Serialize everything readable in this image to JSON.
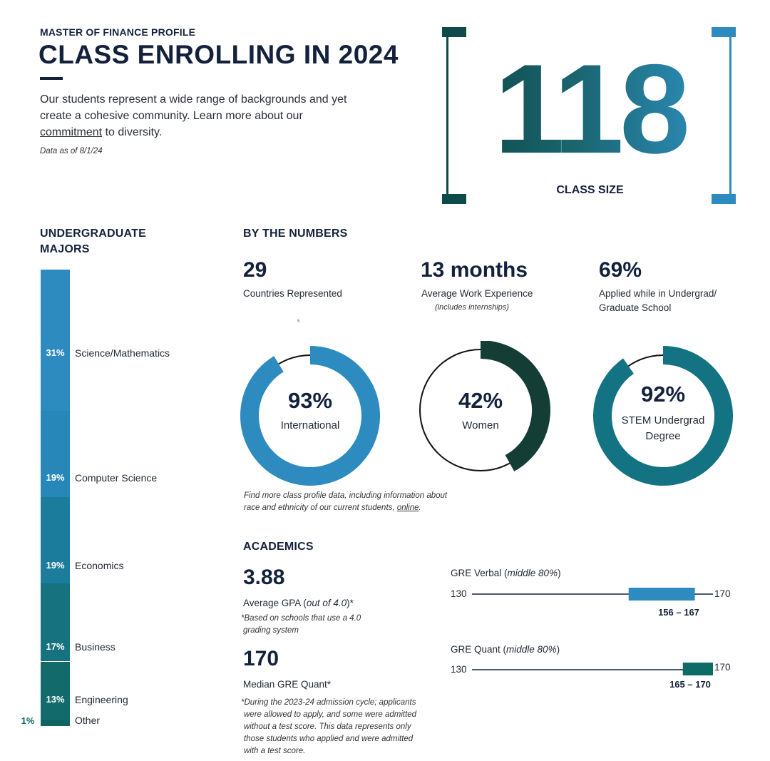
{
  "header": {
    "eyebrow": "MASTER OF FINANCE PROFILE",
    "title": "CLASS ENROLLING IN 2024",
    "intro_before": "Our students represent a wide range of backgrounds and yet create a cohesive community. Learn more about our ",
    "intro_link": "commitment",
    "intro_after": " to diversity.",
    "data_as_of": "Data as of 8/1/24"
  },
  "class_size": {
    "number": "118",
    "label": "CLASS SIZE"
  },
  "majors": {
    "heading_line1": "UNDERGRADUATE",
    "heading_line2": "MAJORS",
    "items": [
      {
        "pct": "31%",
        "label": "Science/Mathematics",
        "value": 31,
        "color": "#2e8bc0"
      },
      {
        "pct": "19%",
        "label": "Computer Science",
        "value": 19,
        "color": "#2687b8"
      },
      {
        "pct": "19%",
        "label": "Economics",
        "value": 19,
        "color": "#1c7c9c"
      },
      {
        "pct": "17%",
        "label": "Business",
        "value": 17,
        "color": "#17727f"
      },
      {
        "pct": "13%",
        "label": "Engineering",
        "value": 13,
        "color": "#126a6a"
      },
      {
        "pct": "1%",
        "label": "Other",
        "value": 1,
        "color": "#0f6361"
      }
    ]
  },
  "numbers": {
    "heading": "BY THE NUMBERS",
    "countries": {
      "value": "29",
      "label": "Countries Represented"
    },
    "work": {
      "value": "13 months",
      "label": "Average Work Experience",
      "note": "(includes internships)"
    },
    "applied": {
      "value": "69%",
      "label_line1": "Applied while in Undergrad/",
      "label_line2": "Graduate School"
    },
    "tiny_mark": "5",
    "donuts": [
      {
        "value": "93%",
        "label_line1": "International",
        "label_line2": "",
        "percent": 93,
        "color": "#2e8bc0"
      },
      {
        "value": "42%",
        "label_line1": "Women",
        "label_line2": "",
        "percent": 42,
        "color": "#143d36"
      },
      {
        "value": "92%",
        "label_line1": "STEM Undergrad",
        "label_line2": "Degree",
        "percent": 92,
        "color": "#137383"
      }
    ],
    "more_note_line1": "Find more class profile data, including information about",
    "more_note_line2_before": "race and ethnicity of our current students, ",
    "more_note_link": "online",
    "more_note_after": "."
  },
  "academics": {
    "heading": "ACADEMICS",
    "gpa": {
      "value": "3.88",
      "label_before": "Average GPA (",
      "label_italic": "out of 4.0",
      "label_after": ")*",
      "note_line1": "*Based on schools that use a 4.0",
      "note_line2": "grading system"
    },
    "gre_median": {
      "value": "170",
      "label": "Median GRE Quant*"
    },
    "footnote": [
      "*During the 2023-24 admission cycle; applicants",
      "were allowed to apply, and some were admitted",
      "without a test score. This data represents only",
      "those students who applied and were admitted",
      "with a test score."
    ],
    "gre_verbal": {
      "title": "GRE Verbal (",
      "title_italic": "middle 80%",
      "title_after": ")",
      "min_label": "130",
      "max_label": "170",
      "range_label": "156 – 167",
      "min": 130,
      "max": 170,
      "low": 156,
      "high": 167,
      "color": "#2e8bc0"
    },
    "gre_quant": {
      "title": "GRE Quant (",
      "title_italic": "middle 80%",
      "title_after": ")",
      "min_label": "130",
      "max_label": "170",
      "range_label": "165 – 170",
      "min": 130,
      "max": 170,
      "low": 165,
      "high": 170,
      "color": "#0f6b66"
    }
  }
}
